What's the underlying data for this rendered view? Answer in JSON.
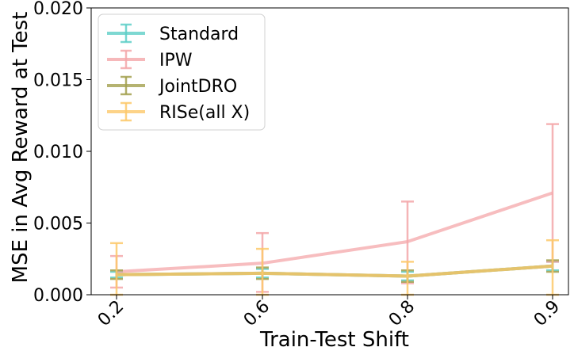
{
  "chart_data": {
    "type": "line",
    "title": "",
    "xlabel": "Train-Test Shift",
    "ylabel": "MSE in Avg Reward at Test",
    "categories": [
      "0.2",
      "0.6",
      "0.8",
      "0.9"
    ],
    "y_ticks": [
      "0.000",
      "0.005",
      "0.010",
      "0.015",
      "0.020"
    ],
    "ylim": [
      0,
      0.02
    ],
    "grid": false,
    "legend_position": "top-left",
    "series": [
      {
        "name": "Standard",
        "color": "#5fcfc8",
        "values": [
          0.0014,
          0.0015,
          0.0013,
          0.002
        ],
        "err_low": [
          0.0012,
          0.0012,
          0.001,
          0.0017
        ],
        "err_high": [
          0.0016,
          0.0018,
          0.0016,
          0.0023
        ]
      },
      {
        "name": "IPW",
        "color": "#f4a7aa",
        "values": [
          0.0016,
          0.0022,
          0.0037,
          0.0071
        ],
        "err_low": [
          0.0005,
          0.0002,
          0.0008,
          0.0023
        ],
        "err_high": [
          0.0027,
          0.0043,
          0.0065,
          0.0119
        ]
      },
      {
        "name": "JointDRO",
        "color": "#a3a14e",
        "values": [
          0.0014,
          0.0015,
          0.0013,
          0.002
        ],
        "err_low": [
          0.0011,
          0.0011,
          0.0009,
          0.0016
        ],
        "err_high": [
          0.0017,
          0.0019,
          0.0017,
          0.0024
        ]
      },
      {
        "name": "RISe(all X)",
        "color": "#fdc96b",
        "values": [
          0.0014,
          0.0015,
          0.0013,
          0.002
        ],
        "err_low": [
          0.0,
          0.0,
          0.0,
          0.0
        ],
        "err_high": [
          0.0036,
          0.0032,
          0.0023,
          0.0038
        ]
      }
    ]
  }
}
